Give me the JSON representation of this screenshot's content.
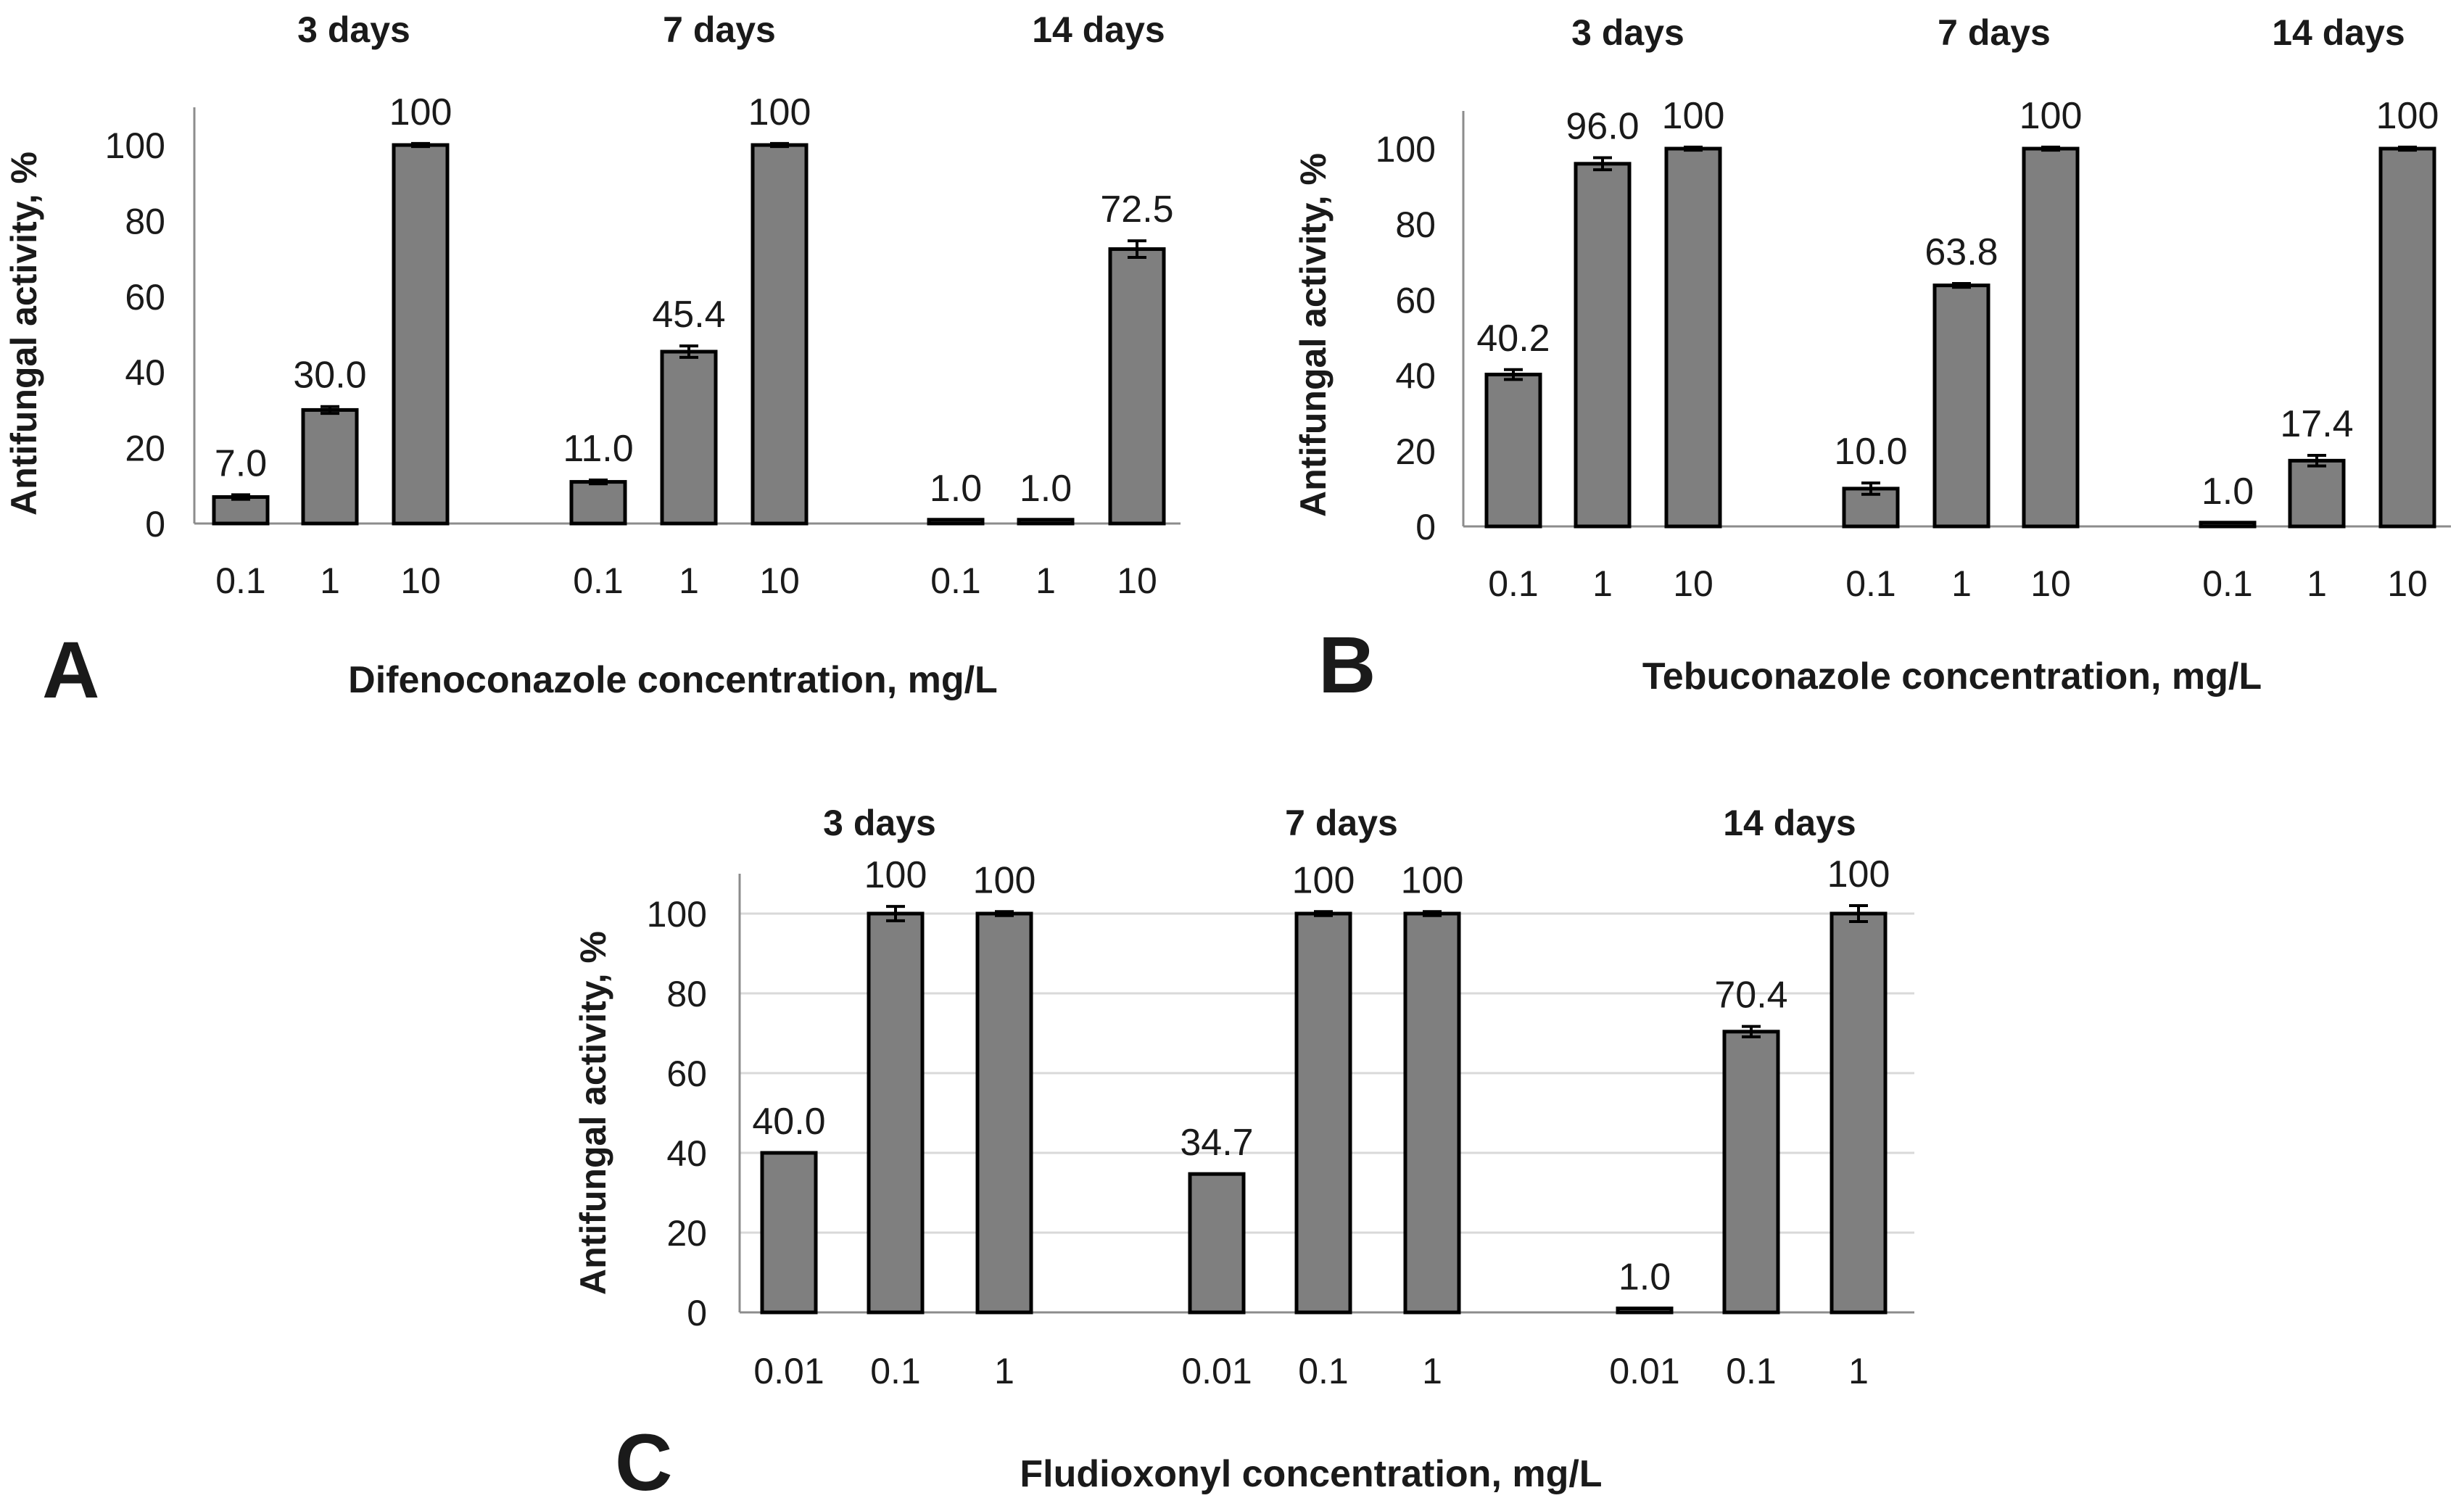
{
  "figure": {
    "description_panels": [
      "A",
      "B",
      "C"
    ]
  },
  "chart_data": [
    {
      "type": "bar",
      "panel_label": "A",
      "xlabel": "Difenoconazole concentration, mg/L",
      "ylabel": "Antifungal activity, %",
      "ylim": [
        0,
        110
      ],
      "yticks": [
        0,
        20,
        40,
        60,
        80,
        100
      ],
      "grid": false,
      "groups": [
        {
          "label": "3 days",
          "categories": [
            "0.1",
            "1",
            "10"
          ],
          "values": [
            7.0,
            30.0,
            100
          ],
          "labels": [
            "7.0",
            "30.0",
            "100"
          ],
          "errors": [
            0.6,
            0.9,
            0.4
          ]
        },
        {
          "label": "7 days",
          "categories": [
            "0.1",
            "1",
            "10"
          ],
          "values": [
            11.0,
            45.4,
            100
          ],
          "labels": [
            "11.0",
            "45.4",
            "100"
          ],
          "errors": [
            0.5,
            1.5,
            0.4
          ]
        },
        {
          "label": "14 days",
          "categories": [
            "0.1",
            "1",
            "10"
          ],
          "values": [
            1.0,
            1.0,
            72.5
          ],
          "labels": [
            "1.0",
            "1.0",
            "72.5"
          ],
          "errors": [
            0,
            0,
            2.2
          ]
        }
      ]
    },
    {
      "type": "bar",
      "panel_label": "B",
      "xlabel": "Tebuconazole concentration, mg/L",
      "ylabel": "Antifungal activity, %",
      "ylim": [
        0,
        110
      ],
      "yticks": [
        0,
        20,
        40,
        60,
        80,
        100
      ],
      "grid": false,
      "groups": [
        {
          "label": "3 days",
          "categories": [
            "0.1",
            "1",
            "10"
          ],
          "values": [
            40.2,
            96.0,
            100
          ],
          "labels": [
            "40.2",
            "96.0",
            "100"
          ],
          "errors": [
            1.3,
            1.6,
            0.4
          ]
        },
        {
          "label": "7 days",
          "categories": [
            "0.1",
            "1",
            "10"
          ],
          "values": [
            10.0,
            63.8,
            100
          ],
          "labels": [
            "10.0",
            "63.8",
            "100"
          ],
          "errors": [
            1.5,
            0.5,
            0.4
          ]
        },
        {
          "label": "14 days",
          "categories": [
            "0.1",
            "1",
            "10"
          ],
          "values": [
            1.0,
            17.4,
            100
          ],
          "labels": [
            "1.0",
            "17.4",
            "100"
          ],
          "errors": [
            0,
            1.4,
            0.4
          ]
        }
      ]
    },
    {
      "type": "bar",
      "panel_label": "C",
      "xlabel": "Fludioxonyl concentration, mg/L",
      "ylabel": "Antifungal activity, %",
      "ylim": [
        0,
        110
      ],
      "yticks": [
        0,
        20,
        40,
        60,
        80,
        100
      ],
      "grid": true,
      "groups": [
        {
          "label": "3 days",
          "categories": [
            "0.01",
            "0.1",
            "1"
          ],
          "values": [
            40.0,
            100,
            100
          ],
          "labels": [
            "40.0",
            "100",
            "100"
          ],
          "errors": [
            0,
            1.8,
            0.5
          ]
        },
        {
          "label": "7 days",
          "categories": [
            "0.01",
            "0.1",
            "1"
          ],
          "values": [
            34.7,
            100,
            100
          ],
          "labels": [
            "34.7",
            "100",
            "100"
          ],
          "errors": [
            0,
            0.5,
            0.5
          ]
        },
        {
          "label": "14 days",
          "categories": [
            "0.01",
            "0.1",
            "1"
          ],
          "values": [
            1.0,
            70.4,
            100
          ],
          "labels": [
            "1.0",
            "70.4",
            "100"
          ],
          "errors": [
            0,
            1.3,
            2.0
          ]
        }
      ]
    }
  ]
}
